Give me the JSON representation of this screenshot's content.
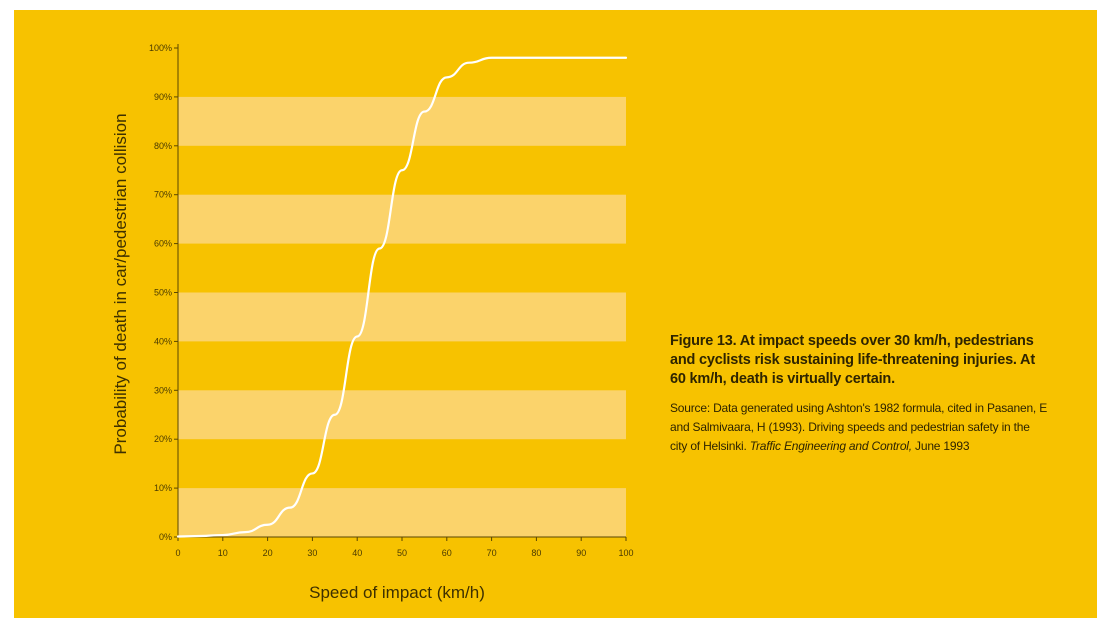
{
  "chart_data": {
    "type": "line",
    "xlabel": "Speed of impact (km/h)",
    "ylabel": "Probability of death in car/pedestrian collision",
    "xlim": [
      0,
      100
    ],
    "ylim": [
      0,
      100
    ],
    "x_ticks": [
      "0",
      "10",
      "20",
      "30",
      "40",
      "50",
      "60",
      "70",
      "80",
      "90",
      "100"
    ],
    "y_ticks": [
      "0%",
      "10%",
      "20%",
      "30%",
      "40%",
      "50%",
      "60%",
      "70%",
      "80%",
      "90%",
      "100%"
    ],
    "grid": "alternating horizontal bands",
    "series": [
      {
        "color": "#ffffff",
        "x": [
          0,
          5,
          10,
          15,
          20,
          25,
          30,
          35,
          40,
          45,
          50,
          55,
          60,
          65,
          70,
          75,
          80,
          85,
          90,
          95,
          100
        ],
        "y": [
          0.1,
          0.2,
          0.4,
          1,
          2.5,
          6,
          13,
          25,
          41,
          59,
          75,
          87,
          94,
          97,
          98,
          98,
          98,
          98,
          98,
          98,
          98
        ]
      }
    ]
  },
  "caption": {
    "title": "Figure 13. At impact speeds over 30 km/h, pedestrians and cyclists risk sustaining life-threatening injuries. At 60 km/h, death is virtually certain.",
    "source_main": "Source: Data generated using Ashton's 1982 formula, cited in Pasanen, E and Salmivaara, H (1993). Driving speeds and pedestrian safety in the city of Helsinki. ",
    "source_italic": "Traffic Engineering and Control,",
    "source_end": " June 1993"
  },
  "colors": {
    "background": "#f7c200",
    "band": "#fbd36b",
    "curve": "#ffffff",
    "text": "#3e3000"
  }
}
